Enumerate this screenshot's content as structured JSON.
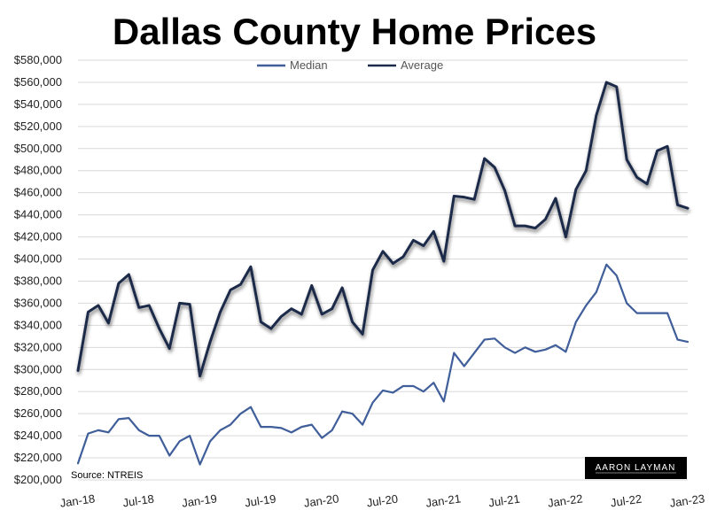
{
  "chart_data": {
    "type": "line",
    "title": "Dallas County Home Prices",
    "x_tick_labels": [
      "Jan-18",
      "Jul-18",
      "Jan-19",
      "Jul-19",
      "Jan-20",
      "Jul-20",
      "Jan-21",
      "Jul-21",
      "Jan-22",
      "Jul-22",
      "Jan-23"
    ],
    "ylim": [
      200000,
      580000
    ],
    "y_tick_labels": [
      "$200,000",
      "$220,000",
      "$240,000",
      "$260,000",
      "$280,000",
      "$300,000",
      "$320,000",
      "$340,000",
      "$360,000",
      "$380,000",
      "$400,000",
      "$420,000",
      "$440,000",
      "$460,000",
      "$480,000",
      "$500,000",
      "$520,000",
      "$540,000",
      "$560,000",
      "$580,000"
    ],
    "legend_position": "top-center",
    "grid": true,
    "series": [
      {
        "name": "Median",
        "color": "#3F5E9A",
        "values": [
          215000,
          242000,
          245000,
          243000,
          255000,
          256000,
          245000,
          240000,
          240000,
          222000,
          235000,
          240000,
          214000,
          235000,
          245000,
          250000,
          260000,
          266000,
          248000,
          248000,
          247000,
          243000,
          248000,
          250000,
          238000,
          245000,
          262000,
          260000,
          250000,
          270000,
          281000,
          279000,
          285000,
          285000,
          280000,
          288000,
          271000,
          315000,
          303000,
          315000,
          327000,
          328000,
          320000,
          315000,
          320000,
          316000,
          318000,
          322000,
          316000,
          343000,
          358000,
          370000,
          395000,
          385000,
          360000,
          351000,
          351000,
          351000,
          351000,
          327000,
          325000
        ]
      },
      {
        "name": "Average",
        "color": "#1E2A4A",
        "values": [
          299000,
          352000,
          358000,
          342000,
          378000,
          386000,
          356000,
          358000,
          337000,
          319000,
          360000,
          359000,
          294000,
          325000,
          352000,
          372000,
          377000,
          393000,
          343000,
          337000,
          348000,
          355000,
          350000,
          376000,
          350000,
          355000,
          374000,
          343000,
          332000,
          390000,
          407000,
          396000,
          402000,
          417000,
          412000,
          425000,
          398000,
          457000,
          456000,
          454000,
          491000,
          483000,
          462000,
          430000,
          430000,
          428000,
          436000,
          455000,
          420000,
          463000,
          480000,
          530000,
          560000,
          556000,
          490000,
          474000,
          468000,
          498000,
          502000,
          449000,
          446000
        ]
      }
    ],
    "annotations": {
      "source": "Source: NTREIS",
      "logo": "AARON LAYMAN"
    }
  }
}
